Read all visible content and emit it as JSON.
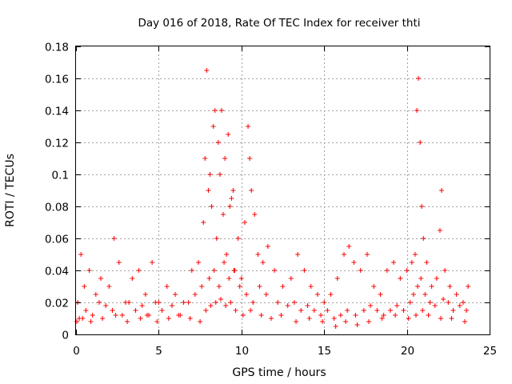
{
  "chart_data": {
    "type": "scatter",
    "title": "Day 016 of 2018, Rate Of TEC Index for receiver thti",
    "xlabel": "GPS time / hours",
    "ylabel": "ROTI / TECUs",
    "xlim": [
      0,
      25
    ],
    "ylim": [
      0,
      0.18
    ],
    "xticks": [
      0,
      5,
      10,
      15,
      20,
      25
    ],
    "yticks": [
      0,
      0.02,
      0.04,
      0.06,
      0.08,
      0.1,
      0.12,
      0.14,
      0.16,
      0.18
    ],
    "xtick_labels": [
      "0",
      "5",
      "10",
      "15",
      "20",
      "25"
    ],
    "ytick_labels": [
      "0",
      "0.02",
      "0.04",
      "0.06",
      "0.08",
      "0.1",
      "0.12",
      "0.14",
      "0.16",
      "0.18"
    ],
    "grid": true,
    "marker": "+",
    "color": "#ff0000",
    "series": [
      {
        "name": "thti",
        "x": [
          0.1,
          0.3,
          0.5,
          0.8,
          1.2,
          1.5,
          2.0,
          2.3,
          2.6,
          3.0,
          3.4,
          3.8,
          4.2,
          4.6,
          5.0,
          5.5,
          6.0,
          6.5,
          7.0,
          7.4,
          7.7,
          7.8,
          7.9,
          8.0,
          8.1,
          8.2,
          8.3,
          8.4,
          8.5,
          8.6,
          8.7,
          8.8,
          8.9,
          9.0,
          9.1,
          9.2,
          9.3,
          9.4,
          9.5,
          9.6,
          9.8,
          10.0,
          10.2,
          10.4,
          10.5,
          10.6,
          10.8,
          11.0,
          11.3,
          11.6,
          12.0,
          12.5,
          13.0,
          13.4,
          13.8,
          14.2,
          14.6,
          15.0,
          15.4,
          15.8,
          16.2,
          16.5,
          16.8,
          17.2,
          17.6,
          18.0,
          18.4,
          18.8,
          19.2,
          19.6,
          20.0,
          20.3,
          20.5,
          20.6,
          20.7,
          20.8,
          20.9,
          21.0,
          21.2,
          21.5,
          21.8,
          22.0,
          22.1,
          22.3,
          22.6,
          23.0,
          23.4,
          23.7,
          0.2,
          0.6,
          1.0,
          1.4,
          1.8,
          2.2,
          2.8,
          3.2,
          3.6,
          4.0,
          4.4,
          4.8,
          5.2,
          5.8,
          6.3,
          6.8,
          7.2,
          7.6,
          8.05,
          8.35,
          8.65,
          8.95,
          9.25,
          9.55,
          9.9,
          10.3,
          10.7,
          11.1,
          11.5,
          12.2,
          12.8,
          13.2,
          13.6,
          14.0,
          14.4,
          14.8,
          15.2,
          15.6,
          16.0,
          16.4,
          16.9,
          17.4,
          17.8,
          18.2,
          18.6,
          19.0,
          19.4,
          19.8,
          20.2,
          20.4,
          20.65,
          20.85,
          21.1,
          21.4,
          21.7,
          22.2,
          22.5,
          22.8,
          23.2,
          23.6,
          0.05,
          0.4,
          0.9,
          1.6,
          2.4,
          3.1,
          3.9,
          4.3,
          4.9,
          5.6,
          6.2,
          6.9,
          7.5,
          7.85,
          8.15,
          8.45,
          8.75,
          9.05,
          9.35,
          9.65,
          10.1,
          10.55,
          11.2,
          11.8,
          12.4,
          13.3,
          14.1,
          14.9,
          15.7,
          16.3,
          17.0,
          17.7,
          18.5,
          19.3,
          20.1,
          20.55,
          20.95,
          21.3,
          22.05,
          22.7,
          23.5
        ],
        "y": [
          0.02,
          0.05,
          0.03,
          0.04,
          0.025,
          0.035,
          0.03,
          0.06,
          0.045,
          0.02,
          0.035,
          0.04,
          0.025,
          0.045,
          0.02,
          0.03,
          0.025,
          0.02,
          0.04,
          0.045,
          0.07,
          0.11,
          0.165,
          0.09,
          0.1,
          0.08,
          0.13,
          0.14,
          0.06,
          0.12,
          0.1,
          0.14,
          0.075,
          0.11,
          0.05,
          0.125,
          0.08,
          0.085,
          0.09,
          0.04,
          0.06,
          0.035,
          0.07,
          0.13,
          0.11,
          0.09,
          0.075,
          0.05,
          0.045,
          0.055,
          0.04,
          0.03,
          0.035,
          0.05,
          0.04,
          0.03,
          0.025,
          0.02,
          0.025,
          0.035,
          0.05,
          0.055,
          0.045,
          0.04,
          0.05,
          0.03,
          0.025,
          0.04,
          0.045,
          0.035,
          0.04,
          0.045,
          0.05,
          0.14,
          0.16,
          0.12,
          0.08,
          0.06,
          0.045,
          0.03,
          0.035,
          0.065,
          0.09,
          0.04,
          0.03,
          0.025,
          0.02,
          0.03,
          0.01,
          0.015,
          0.012,
          0.02,
          0.018,
          0.015,
          0.012,
          0.02,
          0.015,
          0.018,
          0.012,
          0.02,
          0.015,
          0.018,
          0.012,
          0.02,
          0.025,
          0.03,
          0.035,
          0.04,
          0.03,
          0.045,
          0.035,
          0.04,
          0.03,
          0.025,
          0.02,
          0.03,
          0.025,
          0.02,
          0.018,
          0.02,
          0.015,
          0.018,
          0.015,
          0.012,
          0.015,
          0.01,
          0.012,
          0.015,
          0.012,
          0.015,
          0.018,
          0.015,
          0.012,
          0.015,
          0.018,
          0.015,
          0.02,
          0.025,
          0.03,
          0.035,
          0.025,
          0.02,
          0.018,
          0.022,
          0.02,
          0.015,
          0.018,
          0.015,
          0.008,
          0.01,
          0.008,
          0.01,
          0.012,
          0.008,
          0.01,
          0.012,
          0.008,
          0.01,
          0.012,
          0.01,
          0.008,
          0.015,
          0.018,
          0.02,
          0.022,
          0.018,
          0.02,
          0.015,
          0.012,
          0.015,
          0.012,
          0.01,
          0.012,
          0.008,
          0.01,
          0.008,
          0.005,
          0.008,
          0.006,
          0.008,
          0.01,
          0.012,
          0.01,
          0.012,
          0.015,
          0.012,
          0.01,
          0.01,
          0.008
        ]
      }
    ]
  }
}
